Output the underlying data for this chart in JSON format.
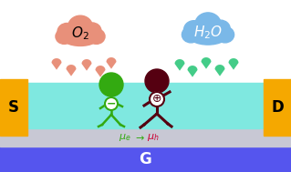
{
  "bg_color": "#ffffff",
  "channel_color": "#7fe8e0",
  "dielectric_color": "#c8c8d4",
  "gate_color": "#5555ee",
  "source_drain_color": "#f5a800",
  "cloud_o2_color": "#e8907a",
  "cloud_h2o_color": "#7ab8e8",
  "rain_o2_color": "#e8907a",
  "rain_h2o_color": "#44cc88",
  "electron_color": "#33aa11",
  "hole_color": "#550011",
  "S_label": "S",
  "D_label": "D",
  "G_label": "G",
  "figsize": [
    3.19,
    1.89
  ],
  "dpi": 100
}
